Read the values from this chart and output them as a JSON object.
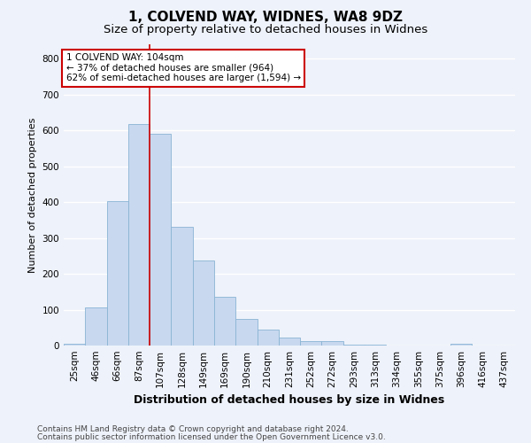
{
  "title1": "1, COLVEND WAY, WIDNES, WA8 9DZ",
  "title2": "Size of property relative to detached houses in Widnes",
  "xlabel": "Distribution of detached houses by size in Widnes",
  "ylabel": "Number of detached properties",
  "categories": [
    "25sqm",
    "46sqm",
    "66sqm",
    "87sqm",
    "107sqm",
    "128sqm",
    "149sqm",
    "169sqm",
    "190sqm",
    "210sqm",
    "231sqm",
    "252sqm",
    "272sqm",
    "293sqm",
    "313sqm",
    "334sqm",
    "355sqm",
    "375sqm",
    "396sqm",
    "416sqm",
    "437sqm"
  ],
  "values": [
    5,
    107,
    403,
    617,
    590,
    332,
    238,
    137,
    73,
    45,
    22,
    12,
    12,
    3,
    2,
    0,
    0,
    0,
    5,
    0,
    0
  ],
  "bar_color": "#c8d8ef",
  "bar_edge_color": "#89b4d4",
  "vline_color": "#cc0000",
  "vline_x_index": 3.5,
  "annotation_text": "1 COLVEND WAY: 104sqm\n← 37% of detached houses are smaller (964)\n62% of semi-detached houses are larger (1,594) →",
  "annotation_box_color": "#ffffff",
  "annotation_box_edge_color": "#cc0000",
  "ylim": [
    0,
    840
  ],
  "yticks": [
    0,
    100,
    200,
    300,
    400,
    500,
    600,
    700,
    800
  ],
  "footer1": "Contains HM Land Registry data © Crown copyright and database right 2024.",
  "footer2": "Contains public sector information licensed under the Open Government Licence v3.0.",
  "background_color": "#eef2fa",
  "grid_color": "#ffffff",
  "title1_fontsize": 11,
  "title2_fontsize": 9.5,
  "xlabel_fontsize": 9,
  "ylabel_fontsize": 8,
  "tick_fontsize": 7.5,
  "footer_fontsize": 6.5,
  "ann_fontsize": 7.5
}
